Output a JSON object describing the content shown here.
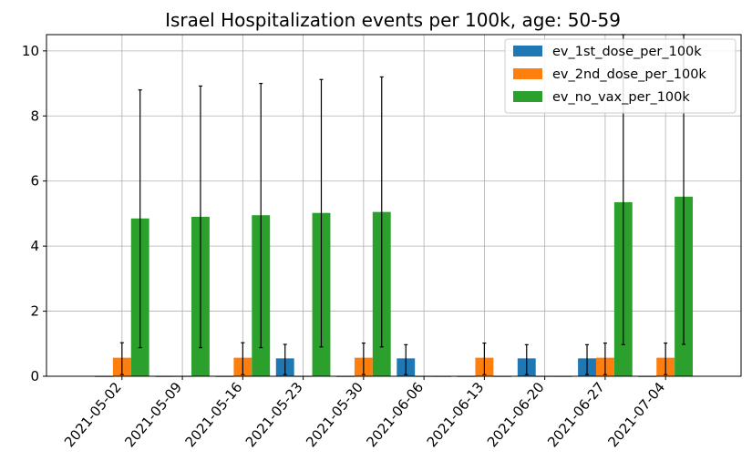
{
  "chart_data": {
    "type": "bar",
    "title": "Israel Hospitalization events per 100k, age: 50-59",
    "xlabel": "",
    "ylabel": "",
    "ylim": [
      0,
      10.5
    ],
    "yticks": [
      0,
      2,
      4,
      6,
      8,
      10
    ],
    "grid": true,
    "legend_position": "top-right",
    "categories": [
      "2021-05-02",
      "2021-05-09",
      "2021-05-16",
      "2021-05-23",
      "2021-05-30",
      "2021-06-06",
      "2021-06-13",
      "2021-06-20",
      "2021-06-27",
      "2021-07-04"
    ],
    "series": [
      {
        "name": "ev_1st_dose_per_100k",
        "color": "#1f77b4",
        "values": [
          0,
          0,
          0,
          0.55,
          0,
          0.55,
          0,
          0.55,
          0.55,
          0
        ],
        "err_low": [
          null,
          null,
          null,
          0.05,
          null,
          0.05,
          null,
          0.05,
          0.05,
          null
        ],
        "err_high": [
          null,
          null,
          null,
          0.98,
          null,
          0.97,
          null,
          0.97,
          0.97,
          null
        ]
      },
      {
        "name": "ev_2nd_dose_per_100k",
        "color": "#ff7f0e",
        "values": [
          0.57,
          0,
          0.57,
          0,
          0.57,
          0,
          0.57,
          0,
          0.57,
          0.57
        ],
        "err_low": [
          0.05,
          null,
          0.05,
          null,
          0.05,
          null,
          0.05,
          null,
          0.05,
          0.05
        ],
        "err_high": [
          1.03,
          null,
          1.03,
          null,
          1.02,
          null,
          1.02,
          null,
          1.02,
          1.02
        ]
      },
      {
        "name": "ev_no_vax_per_100k",
        "color": "#2ca02c",
        "values": [
          4.85,
          4.9,
          4.95,
          5.02,
          5.05,
          0,
          0,
          0,
          5.35,
          5.52
        ],
        "err_low": [
          0.88,
          0.88,
          0.88,
          0.9,
          0.9,
          null,
          null,
          null,
          0.97,
          0.98
        ],
        "err_high": [
          8.8,
          8.92,
          9.0,
          9.12,
          9.2,
          null,
          null,
          null,
          10.5,
          10.5
        ]
      }
    ]
  }
}
